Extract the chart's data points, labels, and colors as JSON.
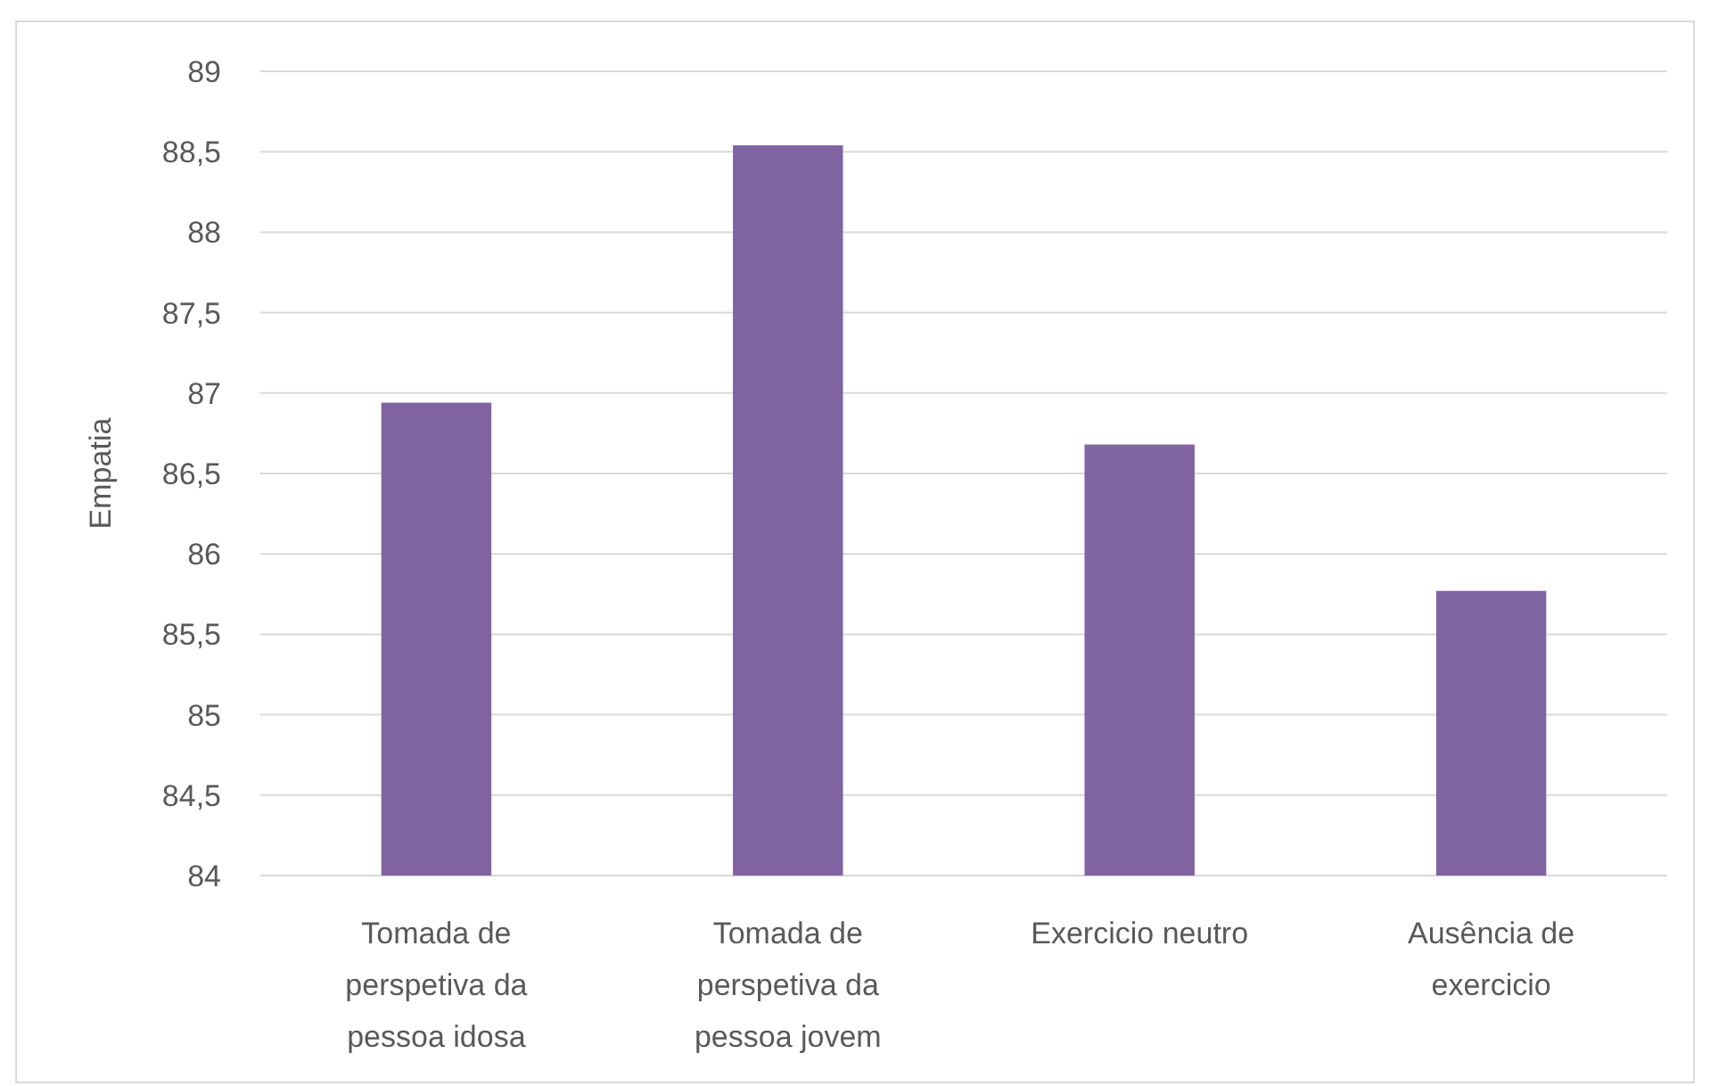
{
  "chart_data": {
    "type": "bar",
    "ylabel": "Empatia",
    "categories": [
      "Tomada de perspetiva da pessoa idosa",
      "Tomada de perspetiva da pessoa jovem",
      "Exercicio neutro",
      "Ausência de exercicio"
    ],
    "series": [
      {
        "color": "#8064a2",
        "values": [
          86.94,
          88.54,
          86.68,
          85.77
        ]
      }
    ],
    "ylim": [
      84,
      89
    ],
    "yticks": [
      84,
      {
        "value": 84.5,
        "label": "84,5"
      },
      85,
      {
        "value": 85.5,
        "label": "85,5"
      },
      86,
      {
        "value": 86.5,
        "label": "86,5"
      },
      87,
      {
        "value": 87.5,
        "label": "87,5"
      },
      88,
      {
        "value": 88.5,
        "label": "88,5"
      },
      89
    ],
    "grid": "y"
  }
}
